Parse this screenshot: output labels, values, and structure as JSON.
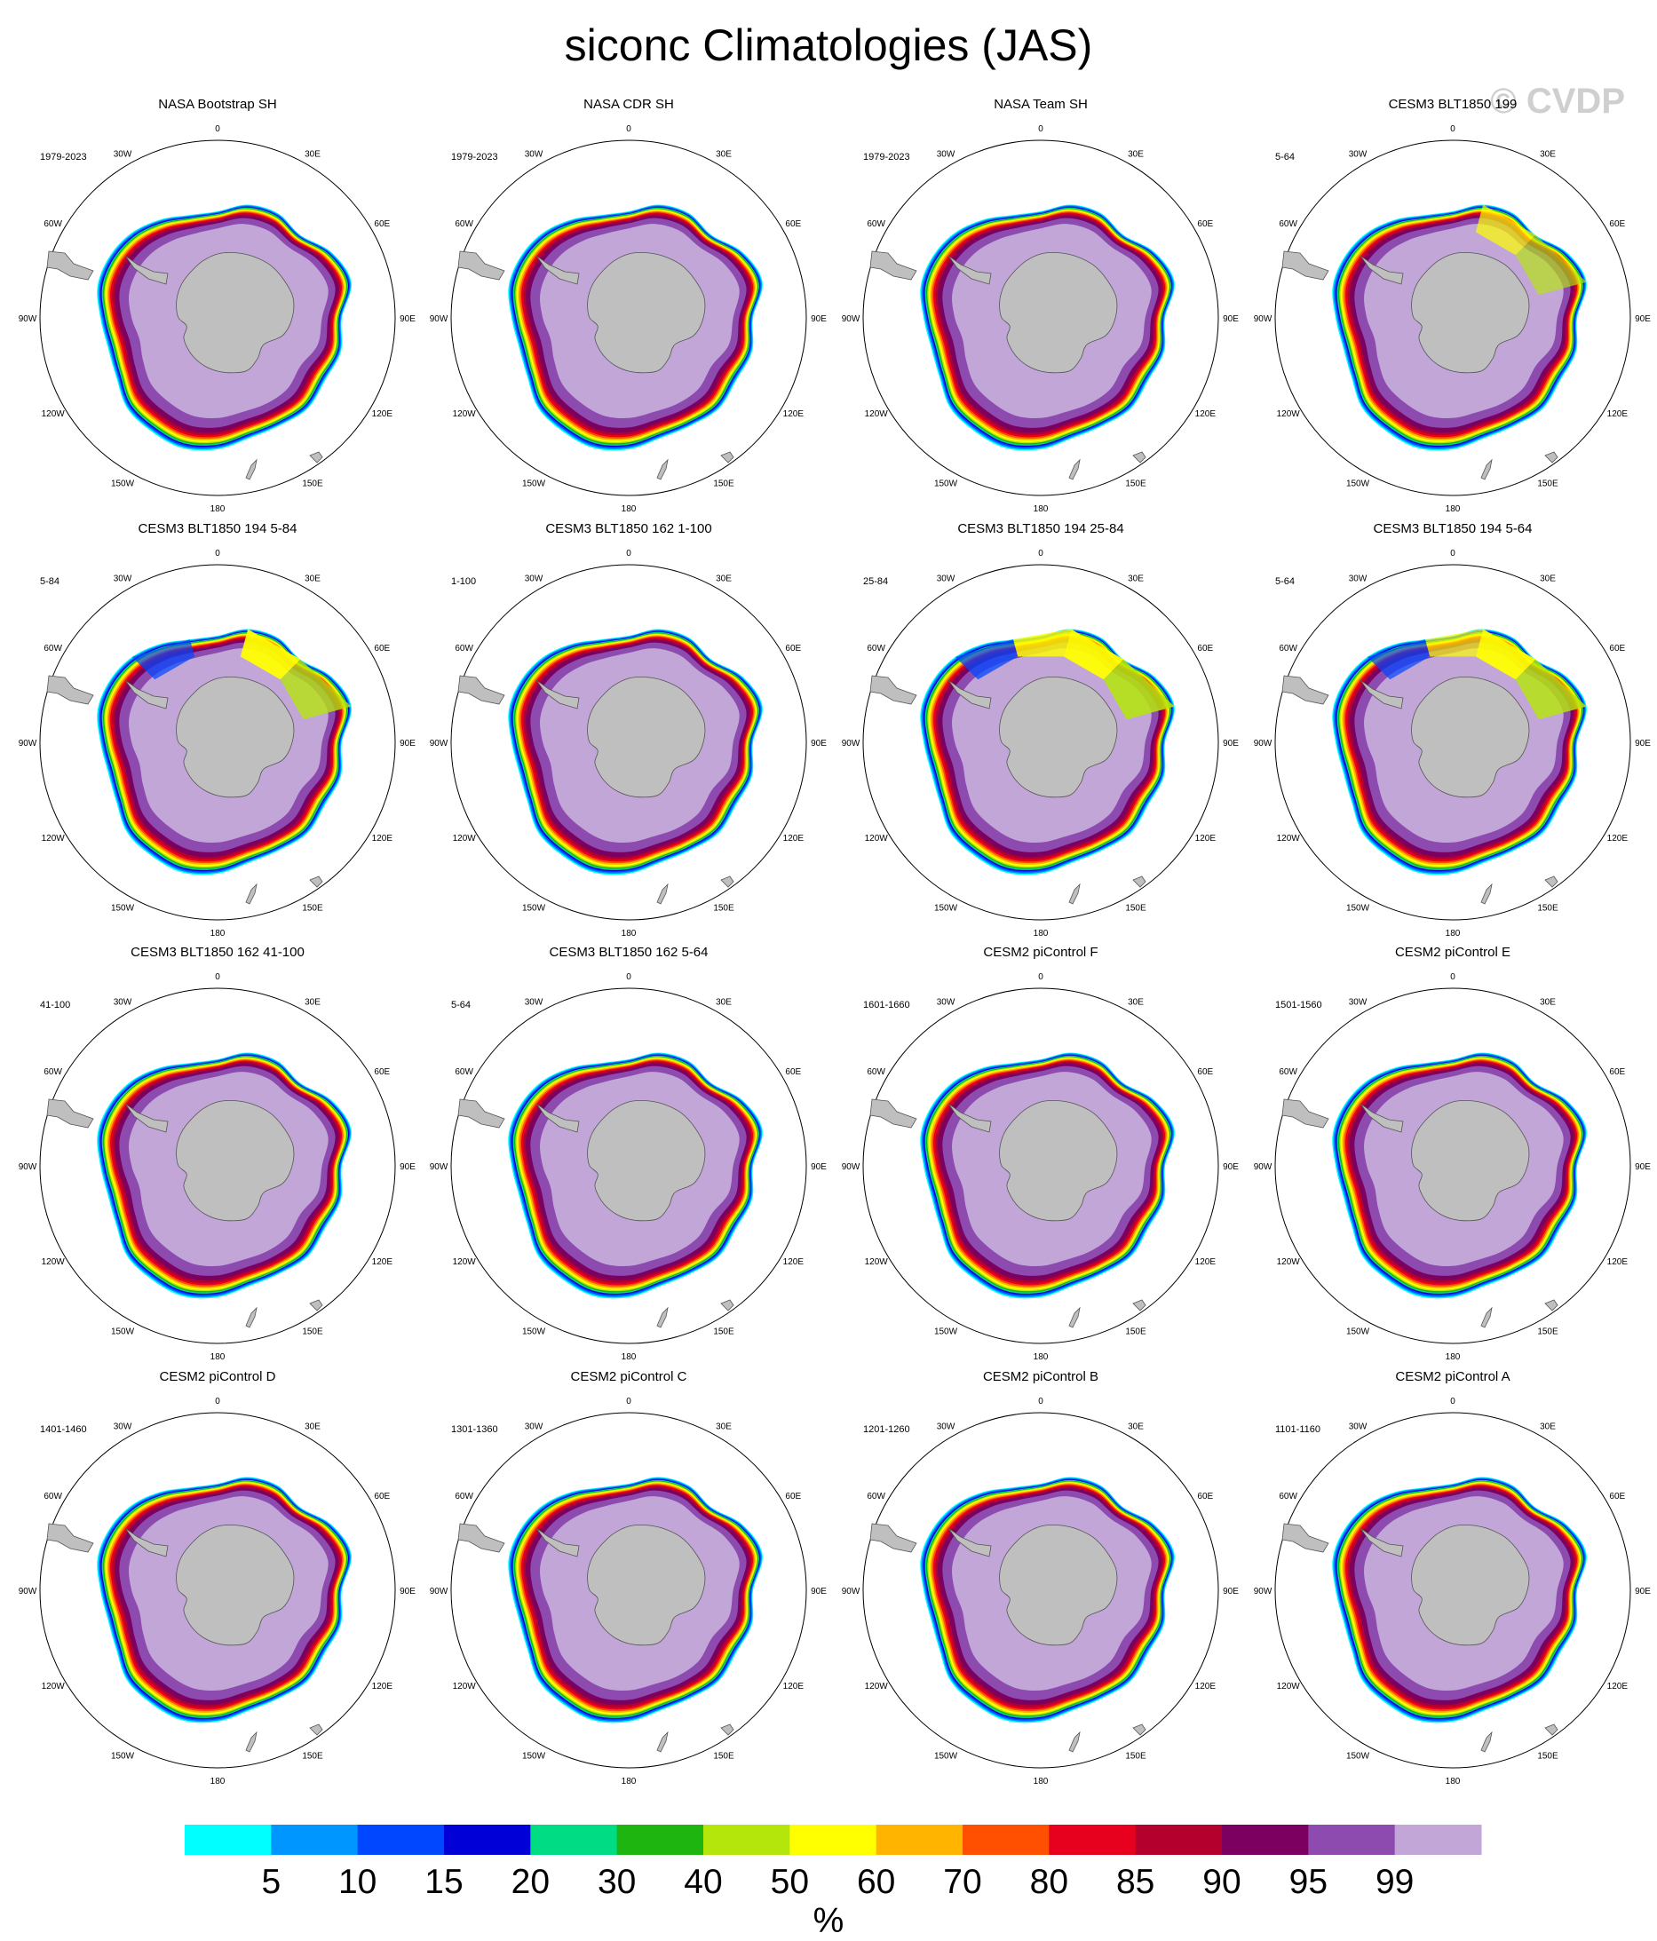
{
  "title": "siconc Climatologies (JAS)",
  "watermark": "© CVDP",
  "chart_data": {
    "type": "heatmap",
    "variable": "siconc",
    "season": "JAS",
    "projection": "south-polar-stereographic",
    "units": "%",
    "colorbar": {
      "levels": [
        5,
        10,
        15,
        20,
        30,
        40,
        50,
        60,
        70,
        80,
        85,
        90,
        95,
        99
      ],
      "colors": [
        "#00ffff",
        "#0096ff",
        "#0047ff",
        "#0000d7",
        "#00dc84",
        "#1fb510",
        "#b5e60c",
        "#ffff00",
        "#ffb400",
        "#ff4f00",
        "#e8001f",
        "#b4002c",
        "#7b0060",
        "#8d4bb0",
        "#c2a6d8"
      ],
      "label": "%"
    },
    "longitude_labels": [
      "0",
      "30E",
      "60E",
      "90E",
      "120E",
      "150E",
      "180",
      "150W",
      "120W",
      "90W",
      "60W",
      "30W"
    ],
    "panels": [
      {
        "title": "NASA Bootstrap SH",
        "years": "1979-2023",
        "w": [
          0,
          0,
          0,
          0,
          0,
          0,
          0,
          0,
          0,
          0,
          0,
          0
        ]
      },
      {
        "title": "NASA CDR SH",
        "years": "1979-2023",
        "w": [
          0,
          0,
          0,
          0,
          0,
          0,
          0,
          0,
          0,
          0,
          0,
          0
        ]
      },
      {
        "title": "NASA Team SH",
        "years": "1979-2023",
        "w": [
          0,
          0,
          0,
          0,
          0,
          0,
          0,
          0,
          0,
          0,
          0,
          0
        ]
      },
      {
        "title": "CESM3 BLT1850 199",
        "years": "5-64",
        "w": [
          0,
          0.4,
          0.3,
          0,
          0,
          0,
          0,
          0,
          0,
          0,
          0,
          0
        ]
      },
      {
        "title": "CESM3 BLT1850 194 5-84",
        "years": "5-84",
        "w": [
          0,
          1,
          0.6,
          0,
          0,
          0,
          0,
          0,
          0,
          0,
          0,
          0.4
        ]
      },
      {
        "title": "CESM3 BLT1850 162 1-100",
        "years": "1-100",
        "w": [
          0,
          0,
          0,
          0,
          0,
          0,
          0,
          0,
          0,
          0,
          0,
          0
        ]
      },
      {
        "title": "CESM3 BLT1850 194 25-84",
        "years": "25-84",
        "w": [
          0.7,
          1,
          0.8,
          0,
          0,
          0,
          0,
          0,
          0,
          0,
          0,
          0.5
        ]
      },
      {
        "title": "CESM3 BLT1850 194 5-64",
        "years": "5-64",
        "w": [
          0.3,
          1,
          0.7,
          0,
          0,
          0,
          0,
          0,
          0,
          0,
          0,
          0.4
        ]
      },
      {
        "title": "CESM3 BLT1850 162 41-100",
        "years": "41-100",
        "w": [
          0,
          0,
          0,
          0,
          0,
          0,
          0,
          0,
          0,
          0,
          0,
          0
        ]
      },
      {
        "title": "CESM3 BLT1850 162 5-64",
        "years": "5-64",
        "w": [
          0,
          0,
          0,
          0,
          0,
          0,
          0,
          0,
          0,
          0,
          0,
          0
        ]
      },
      {
        "title": "CESM2 piControl F",
        "years": "1601-1660",
        "w": [
          0,
          0,
          0,
          0,
          0,
          0,
          0,
          0,
          0,
          0,
          0,
          0
        ]
      },
      {
        "title": "CESM2 piControl E",
        "years": "1501-1560",
        "w": [
          0,
          0,
          0,
          0,
          0,
          0,
          0,
          0,
          0,
          0,
          0,
          0
        ]
      },
      {
        "title": "CESM2 piControl D",
        "years": "1401-1460",
        "w": [
          0,
          0,
          0,
          0,
          0,
          0,
          0,
          0,
          0,
          0,
          0,
          0
        ]
      },
      {
        "title": "CESM2 piControl C",
        "years": "1301-1360",
        "w": [
          0,
          0,
          0,
          0,
          0,
          0,
          0,
          0,
          0,
          0,
          0,
          0
        ]
      },
      {
        "title": "CESM2 piControl B",
        "years": "1201-1260",
        "w": [
          0,
          0,
          0,
          0,
          0,
          0,
          0,
          0,
          0,
          0,
          0,
          0
        ]
      },
      {
        "title": "CESM2 piControl A",
        "years": "1101-1160",
        "w": [
          0,
          0,
          0,
          0,
          0,
          0,
          0,
          0,
          0,
          0,
          0,
          0
        ]
      }
    ]
  }
}
